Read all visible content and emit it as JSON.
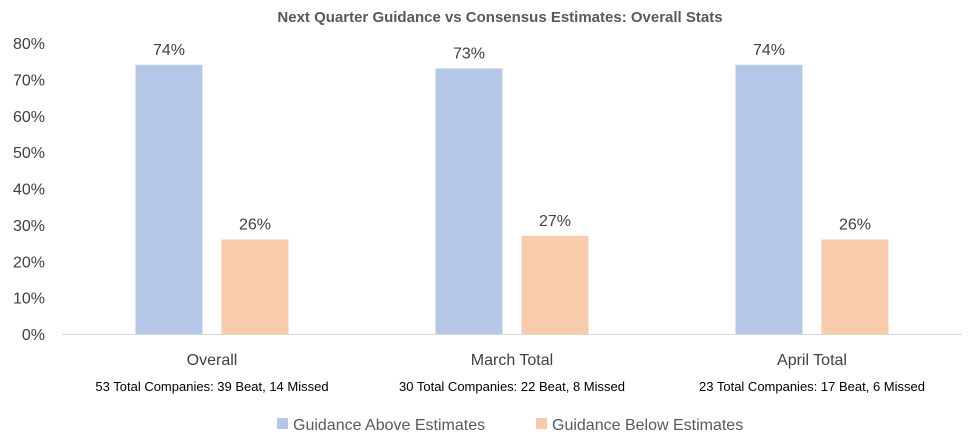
{
  "chart_data": {
    "type": "bar",
    "title": "Next Quarter Guidance vs Consensus Estimates: Overall Stats",
    "categories": [
      "Overall",
      "March Total",
      "April Total"
    ],
    "category_subtitles": [
      "53 Total Companies: 39 Beat, 14 Missed",
      "30 Total Companies: 22 Beat, 8 Missed",
      "23 Total Companies: 17 Beat, 6 Missed"
    ],
    "series": [
      {
        "name": "Guidance Above Estimates",
        "values": [
          74,
          73,
          74
        ],
        "labels": [
          "74%",
          "73%",
          "74%"
        ],
        "color": "#b4c7e7"
      },
      {
        "name": "Guidance Below Estimates",
        "values": [
          26,
          27,
          26
        ],
        "labels": [
          "26%",
          "27%",
          "26%"
        ],
        "color": "#f8cbad"
      }
    ],
    "ylim": [
      0,
      80
    ],
    "yticks": [
      0,
      10,
      20,
      30,
      40,
      50,
      60,
      70,
      80
    ],
    "ytick_labels": [
      "0%",
      "10%",
      "20%",
      "30%",
      "40%",
      "50%",
      "60%",
      "70%",
      "80%"
    ],
    "xlabel": "",
    "ylabel": "",
    "grid": false,
    "legend_position": "bottom",
    "axis_color": "#d9d9d9"
  }
}
